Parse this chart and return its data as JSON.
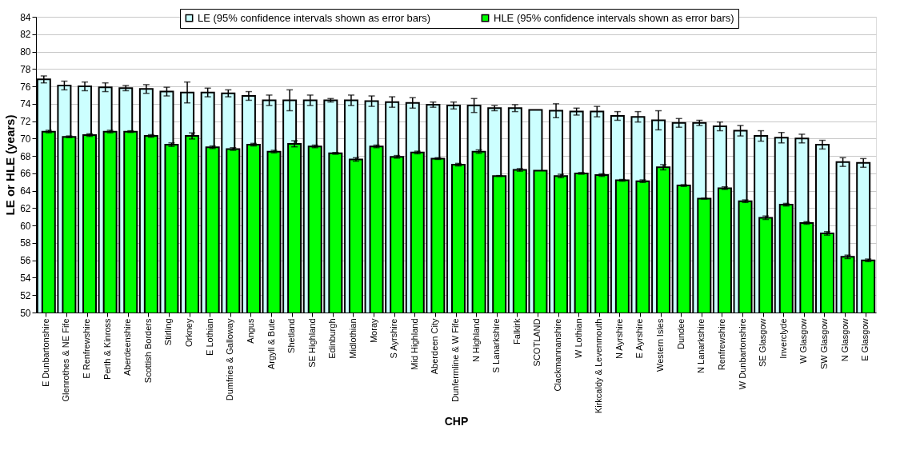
{
  "chart_data": {
    "type": "bar",
    "xlabel": "CHP",
    "ylabel": "LE or HLE (years)",
    "categories": [
      "E Dunbartonshire",
      "Glenrothes & NE Fife",
      "E Renfrewshire",
      "Perth & Kinross",
      "Aberdeenshire",
      "Scottish Borders",
      "Stirling",
      "Orkney",
      "E Lothian",
      "Dumfries & Galloway",
      "Angus",
      "Argyll & Bute",
      "Shetland",
      "SE Highland",
      "Edinburgh",
      "Midlothian",
      "Moray",
      "S Ayrshire",
      "Mid Highland",
      "Aberdeen City",
      "Dunfermline & W Fife",
      "N Highland",
      "S Lanarkshire",
      "Falkirk",
      "SCOTLAND",
      "Clackmannanshire",
      "W Lothian",
      "Kirkcaldy & Levenmouth",
      "N Ayrshire",
      "E Ayrshire",
      "Western Isles",
      "Dundee",
      "N Lanarkshire",
      "Renfrewshire",
      "W Dunbartonshire",
      "SE Glasgow",
      "Inverclyde",
      "W Glasgow",
      "SW Glasgow",
      "N Glasgow",
      "E Glasgow"
    ],
    "series": [
      {
        "name": "LE (95% confidence intervals shown as error bars)",
        "color": "#ccffff",
        "values": [
          76.8,
          76.1,
          76.0,
          75.9,
          75.8,
          75.7,
          75.4,
          75.3,
          75.3,
          75.2,
          74.9,
          74.4,
          74.4,
          74.4,
          74.4,
          74.4,
          74.3,
          74.2,
          74.1,
          73.9,
          73.8,
          73.8,
          73.5,
          73.5,
          73.3,
          73.2,
          73.1,
          73.1,
          72.6,
          72.5,
          72.1,
          71.8,
          71.8,
          71.4,
          70.9,
          70.3,
          70.1,
          70.0,
          69.3,
          67.3,
          67.2
        ],
        "errors": [
          0.4,
          0.5,
          0.5,
          0.5,
          0.3,
          0.5,
          0.5,
          1.2,
          0.5,
          0.4,
          0.5,
          0.6,
          1.2,
          0.6,
          0.2,
          0.6,
          0.6,
          0.6,
          0.6,
          0.3,
          0.4,
          0.8,
          0.3,
          0.4,
          null,
          0.8,
          0.4,
          0.6,
          0.5,
          0.6,
          1.1,
          0.5,
          0.3,
          0.5,
          0.6,
          0.6,
          0.6,
          0.5,
          0.5,
          0.5,
          0.5
        ]
      },
      {
        "name": "HLE (95% confidence intervals shown as error bars)",
        "color": "#00ff00",
        "values": [
          70.8,
          70.2,
          70.4,
          70.8,
          70.8,
          70.3,
          69.3,
          70.3,
          69.0,
          68.8,
          69.3,
          68.5,
          69.4,
          69.1,
          68.3,
          67.6,
          69.1,
          67.9,
          68.4,
          67.7,
          67.0,
          68.5,
          65.7,
          66.4,
          66.3,
          65.7,
          66.0,
          65.8,
          65.2,
          65.1,
          66.7,
          64.6,
          63.1,
          64.3,
          62.8,
          60.9,
          62.4,
          60.3,
          59.1,
          56.4,
          56.0
        ],
        "errors": [
          0.15,
          0.1,
          0.15,
          0.15,
          0.1,
          0.15,
          0.2,
          0.35,
          0.15,
          0.15,
          0.15,
          0.15,
          0.35,
          0.15,
          0.1,
          0.2,
          0.15,
          0.15,
          0.15,
          0.1,
          0.15,
          0.2,
          0.05,
          0.15,
          null,
          0.2,
          0.1,
          0.15,
          0.1,
          0.15,
          0.3,
          0.1,
          0.05,
          0.15,
          0.15,
          0.2,
          0.15,
          0.15,
          0.2,
          0.2,
          0.15
        ]
      }
    ],
    "ylim": [
      50,
      84
    ],
    "yticks": [
      50,
      52,
      54,
      56,
      58,
      60,
      62,
      64,
      66,
      68,
      70,
      72,
      74,
      76,
      78,
      80,
      82,
      84
    ],
    "grid": "y",
    "legend": "top"
  }
}
